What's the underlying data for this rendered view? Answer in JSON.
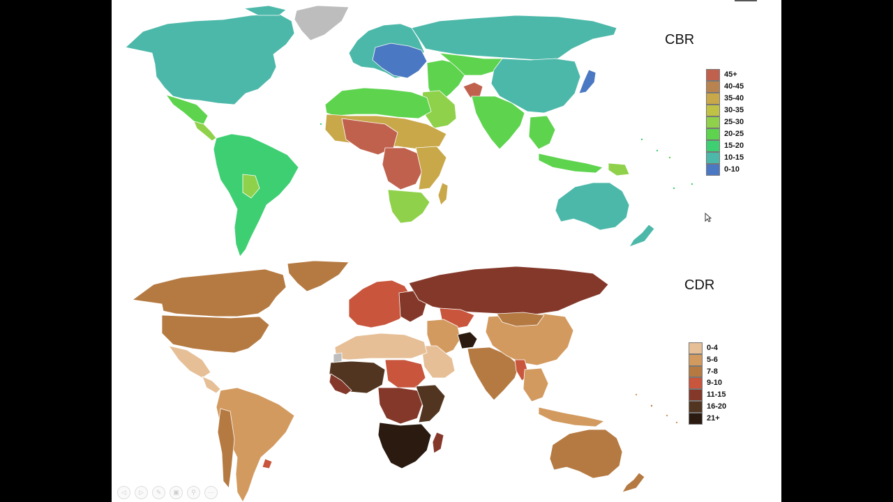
{
  "cbr": {
    "title": "CBR",
    "legend": [
      {
        "label": "45+",
        "color": "#c0614e"
      },
      {
        "label": "40-45",
        "color": "#b98350"
      },
      {
        "label": "35-40",
        "color": "#c9a84a"
      },
      {
        "label": "30-35",
        "color": "#bfc244"
      },
      {
        "label": "25-30",
        "color": "#8fd14a"
      },
      {
        "label": "20-25",
        "color": "#5ed34e"
      },
      {
        "label": "15-20",
        "color": "#3ecf72"
      },
      {
        "label": "10-15",
        "color": "#4cb8a9"
      },
      {
        "label": "0-10",
        "color": "#4b78c2"
      }
    ]
  },
  "cdr": {
    "title": "CDR",
    "legend": [
      {
        "label": "0-4",
        "color": "#e6bf97"
      },
      {
        "label": "5-6",
        "color": "#d39a5f"
      },
      {
        "label": "7-8",
        "color": "#b57a42"
      },
      {
        "label": "9-10",
        "color": "#c8553c"
      },
      {
        "label": "11-15",
        "color": "#84382a"
      },
      {
        "label": "16-20",
        "color": "#523520"
      },
      {
        "label": "21+",
        "color": "#2a1a10"
      }
    ]
  },
  "toolbar": {
    "buttons": [
      {
        "icon": "prev-icon",
        "glyph": "◁"
      },
      {
        "icon": "next-icon",
        "glyph": "▷"
      },
      {
        "icon": "pen-icon",
        "glyph": "✎"
      },
      {
        "icon": "slides-icon",
        "glyph": "▣"
      },
      {
        "icon": "zoom-icon",
        "glyph": "⚲"
      },
      {
        "icon": "more-icon",
        "glyph": "⋯"
      }
    ]
  }
}
